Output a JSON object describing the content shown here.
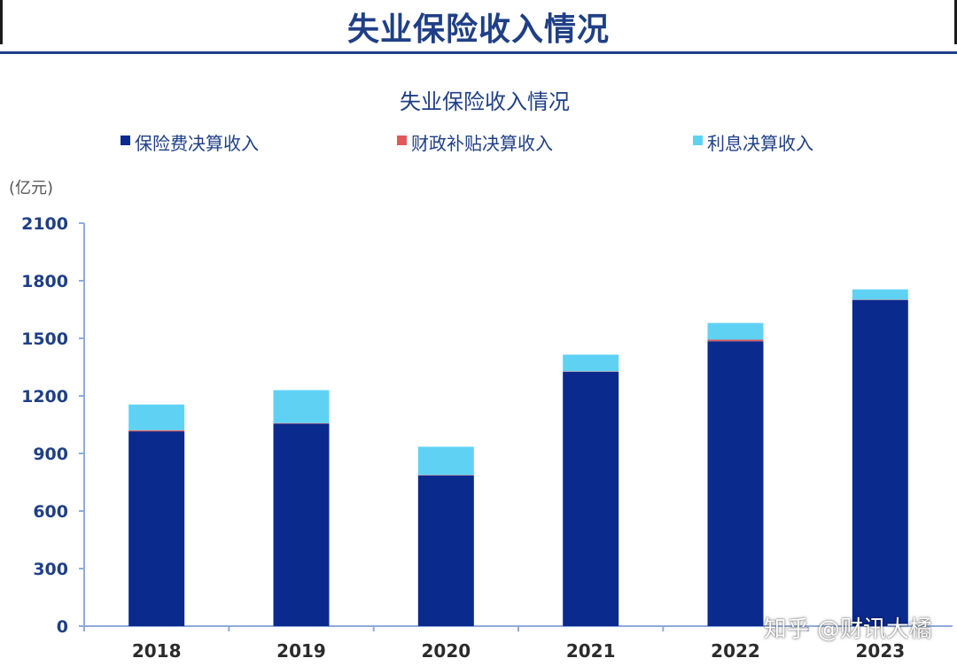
{
  "header": {
    "title": "失业保险收入情况"
  },
  "watermark": "知乎 @财讯大橘",
  "colors": {
    "premium": "#0b2a8e",
    "subsidy": "#e0595a",
    "interest": "#5fd2f4",
    "title": "#1f3f86",
    "axis": "#8faadc",
    "tick": "#1f3f86"
  },
  "chart_data": {
    "type": "bar",
    "stacked": true,
    "title": "失业保险收入情况",
    "unit_label": "(亿元)",
    "categories": [
      "2018",
      "2019",
      "2020",
      "2021",
      "2022",
      "2023"
    ],
    "series": [
      {
        "name": "保险费决算收入",
        "values": [
          1015,
          1055,
          785,
          1325,
          1485,
          1700
        ]
      },
      {
        "name": "财政补贴决算收入",
        "values": [
          6,
          3,
          2,
          2,
          8,
          2
        ]
      },
      {
        "name": "利息决算收入",
        "values": [
          134,
          172,
          148,
          88,
          87,
          53
        ]
      }
    ],
    "ylim": [
      0,
      2100
    ],
    "yticks": [
      0,
      300,
      600,
      900,
      1200,
      1500,
      1800,
      2100
    ],
    "legend_position": "top",
    "grid": false
  }
}
